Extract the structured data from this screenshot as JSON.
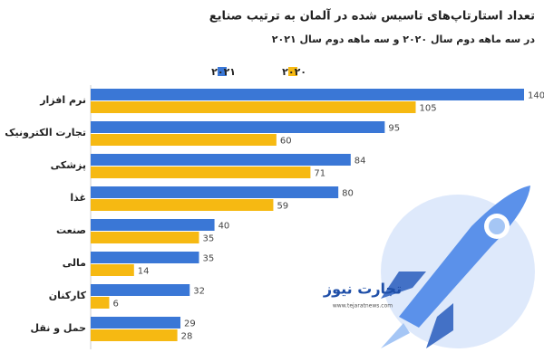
{
  "chart_data": {
    "type": "hbar",
    "title": "تعداد استارتاپ‌های تاسیس شده در آلمان به ترتیب صنایع",
    "subtitle": "در سه ماهه دوم سال ۲۰۲۰ و سه ماهه دوم سال ۲۰۲۱",
    "categories": [
      "نرم افزار",
      "تجارت الکترونیک",
      "پزشکی",
      "غذا",
      "صنعت",
      "مالی",
      "کارکنان",
      "حمل و نقل"
    ],
    "series": [
      {
        "name": "۲۰۲۱",
        "color": "#3a77d6",
        "values": [
          140,
          95,
          84,
          80,
          40,
          35,
          32,
          29
        ]
      },
      {
        "name": "۲۰۲۰",
        "color": "#f6b912",
        "values": [
          105,
          60,
          71,
          59,
          35,
          14,
          6,
          28
        ]
      }
    ],
    "watermark": {
      "brand": "تجارت نیوز",
      "site": "www.tejaratnews.com"
    }
  }
}
